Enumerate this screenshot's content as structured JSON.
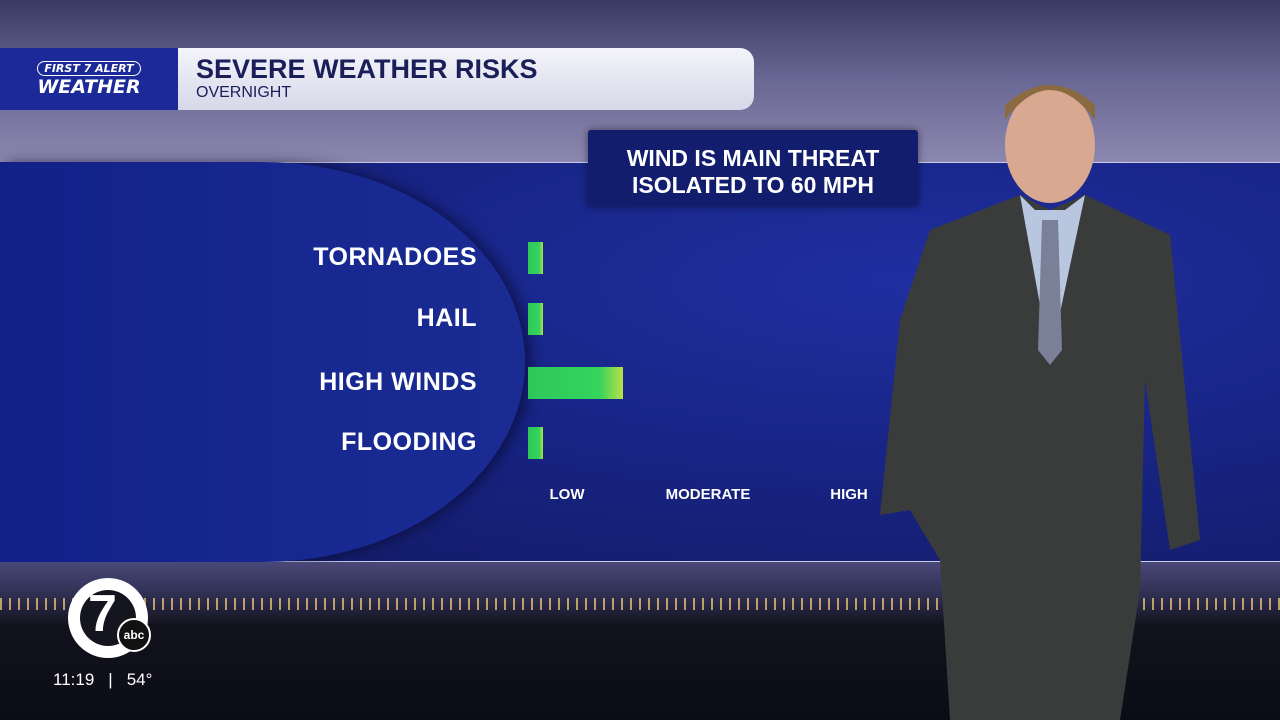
{
  "header": {
    "brand_line1": "FIRST 7 ALERT",
    "brand_line2": "WEATHER",
    "title": "SEVERE WEATHER RISKS",
    "subtitle": "OVERNIGHT"
  },
  "callout": {
    "line1": "WIND IS MAIN THREAT",
    "line2": "ISOLATED TO 60 MPH"
  },
  "chart_data": {
    "type": "bar",
    "orientation": "horizontal",
    "categories": [
      "TORNADOES",
      "HAIL",
      "HIGH WINDS",
      "FLOODING"
    ],
    "values": [
      0.83,
      0.83,
      1.4,
      0.83
    ],
    "value_scale_note": "risk level on scale LOW=1, MODERATE=2, HIGH=3",
    "tick_labels": [
      "LOW",
      "MODERATE",
      "HIGH"
    ],
    "tick_values": [
      1,
      2,
      3
    ],
    "xlim": [
      0.72,
      3
    ],
    "grid": false,
    "bar_color": "#34d45c",
    "bar_end_color": "#b8e048"
  },
  "station": {
    "logo": "7 abc",
    "time": "11:19",
    "separator": "|",
    "temperature": "54°"
  }
}
